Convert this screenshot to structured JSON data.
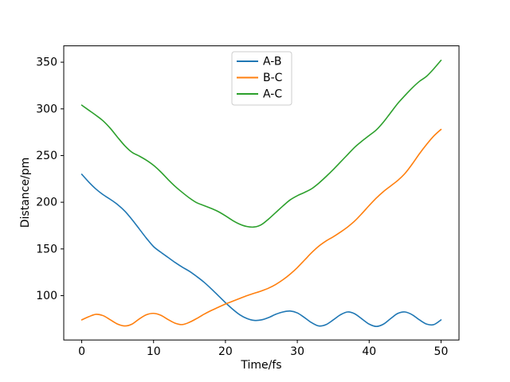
{
  "figure": {
    "background": "#ffffff",
    "axes_edge_color": "#000000"
  },
  "chart_data": {
    "type": "line",
    "title": "",
    "xlabel": "Time/fs",
    "ylabel": "Distance/pm",
    "xlim": [
      -2.5,
      52.5
    ],
    "ylim": [
      52.5,
      367.5
    ],
    "xticks": [
      0,
      10,
      20,
      30,
      40,
      50
    ],
    "yticks": [
      100,
      150,
      200,
      250,
      300,
      350
    ],
    "grid": false,
    "legend": {
      "position": "upper center",
      "border_color": "#cccccc",
      "background": "#ffffff",
      "entries": [
        "A-B",
        "B-C",
        "A-C"
      ]
    },
    "x": [
      0,
      1,
      2,
      3,
      4,
      5,
      6,
      7,
      8,
      9,
      10,
      11,
      12,
      13,
      14,
      15,
      16,
      17,
      18,
      19,
      20,
      21,
      22,
      23,
      24,
      25,
      26,
      27,
      28,
      29,
      30,
      31,
      32,
      33,
      34,
      35,
      36,
      37,
      38,
      39,
      40,
      41,
      42,
      43,
      44,
      45,
      46,
      47,
      48,
      49,
      50
    ],
    "series": [
      {
        "name": "A-B",
        "color": "#1f77b4",
        "values": [
          230,
          221.5,
          214,
          208,
          203,
          197.5,
          190.5,
          181.5,
          171.5,
          161.5,
          152.5,
          146.5,
          141,
          135.5,
          130.5,
          126,
          120.5,
          114.5,
          107.5,
          100,
          92.5,
          85.5,
          79.5,
          75.5,
          73.5,
          74,
          76.5,
          80,
          82.5,
          83.5,
          81.5,
          76.5,
          71,
          67.5,
          69,
          74,
          79.5,
          82.5,
          80.5,
          75,
          69.5,
          67,
          69.5,
          75.5,
          81,
          82.5,
          79.5,
          74,
          69.5,
          69,
          74
        ]
      },
      {
        "name": "B-C",
        "color": "#ff7f0e",
        "values": [
          74,
          77.5,
          80,
          78.5,
          74,
          69.5,
          67.5,
          69.5,
          75,
          79.5,
          81,
          79,
          74.5,
          70.5,
          69,
          71.5,
          75.5,
          80,
          84,
          87.5,
          91,
          94,
          97,
          100,
          102.5,
          105,
          108,
          112,
          117,
          123,
          130,
          138,
          146,
          153,
          158.5,
          163,
          168,
          173.5,
          180,
          188,
          196.5,
          204.5,
          211.5,
          217.5,
          223.5,
          231,
          241,
          252,
          262,
          271,
          278
        ]
      },
      {
        "name": "A-C",
        "color": "#2ca02c",
        "values": [
          304,
          298.5,
          293,
          287,
          279,
          269.5,
          260.5,
          253.5,
          249.5,
          245,
          239.5,
          232.5,
          224.5,
          217,
          210.5,
          204.5,
          199.5,
          196.5,
          193.5,
          190,
          185.5,
          180.5,
          176.5,
          174,
          173.5,
          176,
          182,
          189,
          196,
          202.5,
          207,
          210.5,
          214.5,
          220.5,
          227.5,
          235,
          243,
          251,
          259,
          265.5,
          271.5,
          277.5,
          286,
          296,
          306,
          314.5,
          322.5,
          329.5,
          335,
          343,
          352
        ]
      }
    ]
  }
}
